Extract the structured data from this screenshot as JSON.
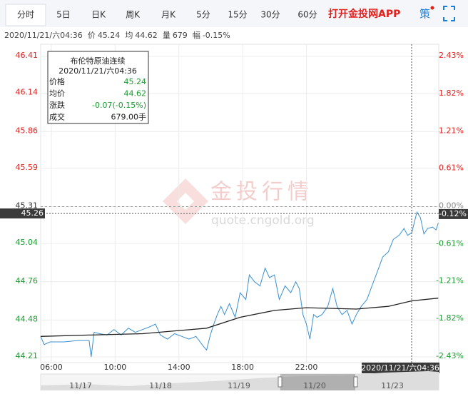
{
  "tabs": [
    "分时",
    "5日",
    "日K",
    "周K",
    "月K",
    "5分",
    "15分",
    "30分",
    "60分"
  ],
  "active_tab": 0,
  "app_link": "打开金投网APP",
  "strategy": "策",
  "info": {
    "datetime": "2020/11/21/六04:36",
    "price_label": "价",
    "price": "45.24",
    "avg_label": "均",
    "avg": "44.62",
    "vol_label": "量",
    "vol": "679",
    "range_label": "幅",
    "range": "-0.15%"
  },
  "tooltip": {
    "title": "布伦特原油连续",
    "datetime": "2020/11/21/六04:36",
    "rows": [
      [
        "价格",
        "45.24"
      ],
      [
        "均价",
        "44.62"
      ],
      [
        "涨跌",
        "-0.07(-0.15%)"
      ],
      [
        "成交",
        "679.00手"
      ]
    ]
  },
  "watermark": {
    "brand": "金投行情",
    "url": "quote.cngold.org"
  },
  "navigator": {
    "dates": [
      "11/17",
      "11/18",
      "11/19",
      "11/20",
      "11/23"
    ]
  },
  "chart_data": {
    "type": "line",
    "xlim": [
      5.33,
      30.3
    ],
    "xticks": [
      {
        "value": 6,
        "label": "06:00"
      },
      {
        "value": 10,
        "label": "10:00"
      },
      {
        "value": 14,
        "label": "14:00"
      },
      {
        "value": 18,
        "label": "18:00"
      },
      {
        "value": 22,
        "label": "22:00"
      }
    ],
    "ylim": [
      44.21,
      46.41
    ],
    "yticks": [
      46.41,
      46.14,
      45.86,
      45.59,
      45.31,
      45.04,
      44.76,
      44.48,
      44.21
    ],
    "y2lim": [
      -2.43,
      2.43
    ],
    "y2ticks": [
      {
        "value": 2.43,
        "label": "2.43%"
      },
      {
        "value": 1.82,
        "label": "1.82%"
      },
      {
        "value": 1.21,
        "label": "1.21%"
      },
      {
        "value": 0.61,
        "label": "0.61%"
      },
      {
        "value": 0,
        "label": "0.00%"
      },
      {
        "value": -0.61,
        "label": "-0.61%"
      },
      {
        "value": -1.21,
        "label": "-1.21%"
      },
      {
        "value": -1.82,
        "label": "-1.82%"
      },
      {
        "value": -2.43,
        "label": "-2.43%"
      }
    ],
    "grid": true,
    "series": [
      {
        "name": "价格",
        "color": "#3a8fd1",
        "x": [
          5.33,
          5.55,
          5.91,
          6.8,
          7.7,
          8.37,
          8.5,
          8.68,
          9.04,
          9.49,
          9.93,
          10.38,
          10.83,
          11.27,
          11.72,
          12.17,
          12.53,
          12.84,
          13.28,
          13.73,
          14.18,
          14.63,
          15.07,
          15.52,
          15.74,
          15.97,
          16.19,
          16.41,
          16.64,
          16.86,
          17.17,
          17.53,
          17.84,
          18.2,
          18.42,
          18.74,
          19.09,
          19.41,
          19.68,
          19.99,
          20.3,
          20.66,
          21.02,
          21.33,
          21.55,
          21.78,
          22.0,
          22.22,
          22.45,
          22.67,
          22.98,
          23.34,
          23.65,
          23.92,
          24.23,
          24.55,
          24.86,
          25.13,
          25.44,
          25.8,
          26.11,
          26.47,
          26.78,
          27.14,
          27.45,
          27.81,
          28.12,
          28.35,
          28.61,
          28.93,
          29.15,
          29.37,
          29.6,
          29.91,
          30.13,
          30.27
        ],
        "values": [
          44.36,
          44.3,
          44.32,
          44.32,
          44.33,
          44.33,
          44.21,
          44.39,
          44.38,
          44.37,
          44.41,
          44.37,
          44.42,
          44.39,
          44.41,
          44.43,
          44.45,
          44.37,
          44.34,
          44.38,
          44.36,
          44.34,
          44.36,
          44.29,
          44.26,
          44.37,
          44.45,
          44.52,
          44.58,
          44.52,
          44.6,
          44.5,
          44.68,
          44.63,
          44.81,
          44.76,
          44.73,
          44.86,
          44.79,
          44.81,
          44.63,
          44.73,
          44.68,
          44.76,
          44.71,
          44.52,
          44.45,
          44.34,
          44.52,
          44.5,
          44.52,
          44.58,
          44.71,
          44.58,
          44.52,
          44.55,
          44.45,
          44.52,
          44.58,
          44.63,
          44.73,
          44.84,
          44.94,
          44.98,
          45.07,
          45.1,
          45.15,
          45.1,
          45.12,
          45.27,
          45.23,
          45.11,
          45.15,
          45.16,
          45.14,
          45.19
        ]
      },
      {
        "name": "均价",
        "color": "#222222",
        "x": [
          5.33,
          8.37,
          11.72,
          15.74,
          17.84,
          19.99,
          22.0,
          25.13,
          27.14,
          28.61,
          30.27
        ],
        "values": [
          44.36,
          44.37,
          44.38,
          44.42,
          44.5,
          44.55,
          44.57,
          44.56,
          44.58,
          44.62,
          44.64
        ]
      }
    ],
    "crosshair": {
      "x": 28.6,
      "x_label": "2020/11/21/六04:36",
      "y": 45.26,
      "y2": {
        "value": -0.12,
        "label": "-0.12%"
      }
    }
  }
}
